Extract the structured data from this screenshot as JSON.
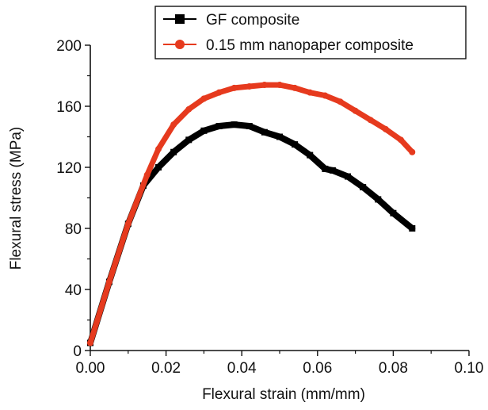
{
  "chart_data": {
    "type": "line",
    "title": "",
    "xlabel": "Flexural strain (mm/mm)",
    "ylabel": "Flexural stress (MPa)",
    "xlim": [
      0.0,
      0.1
    ],
    "ylim": [
      0,
      200
    ],
    "x_ticks": [
      0.0,
      0.02,
      0.04,
      0.06,
      0.08,
      0.1
    ],
    "x_tick_labels": [
      "0.00",
      "0.02",
      "0.04",
      "0.06",
      "0.08",
      "0.10"
    ],
    "y_ticks": [
      0,
      40,
      80,
      120,
      160,
      200
    ],
    "y_tick_labels": [
      "0",
      "40",
      "80",
      "120",
      "160",
      "200"
    ],
    "grid": false,
    "legend_position": "top-right",
    "series": [
      {
        "name": "GF composite",
        "color": "#000000",
        "marker": "square",
        "x": [
          0.0,
          0.005,
          0.01,
          0.014,
          0.018,
          0.022,
          0.026,
          0.03,
          0.034,
          0.038,
          0.042,
          0.046,
          0.05,
          0.054,
          0.058,
          0.062,
          0.064,
          0.068,
          0.072,
          0.076,
          0.08,
          0.085
        ],
        "y": [
          5,
          45,
          83,
          108,
          120,
          130,
          138,
          144,
          147,
          148,
          147,
          143,
          140,
          135,
          128,
          119,
          118,
          114,
          107,
          99,
          90,
          80
        ]
      },
      {
        "name": "0.15 mm nanopaper composite",
        "color": "#e63a1e",
        "marker": "circle",
        "x": [
          0.0,
          0.005,
          0.01,
          0.015,
          0.018,
          0.022,
          0.026,
          0.03,
          0.034,
          0.038,
          0.042,
          0.046,
          0.05,
          0.054,
          0.058,
          0.062,
          0.066,
          0.07,
          0.074,
          0.078,
          0.082,
          0.085
        ],
        "y": [
          5,
          45,
          83,
          115,
          132,
          148,
          158,
          165,
          169,
          172,
          173,
          174,
          174,
          172,
          169,
          167,
          163,
          157,
          151,
          145,
          138,
          130
        ]
      }
    ]
  }
}
